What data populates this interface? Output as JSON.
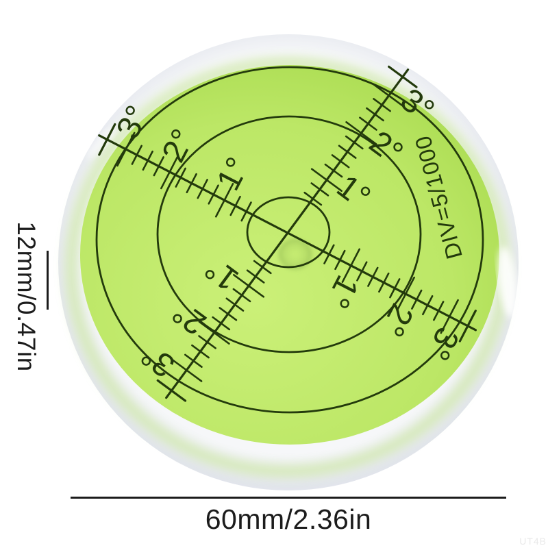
{
  "page": {
    "background": "#ffffff"
  },
  "dial": {
    "degree_labels": [
      "1°",
      "2°",
      "3°"
    ],
    "division_text": "DIV=5/1000",
    "print_color": "#233a0c",
    "face_center_color": "#cbf078",
    "face_mid_color": "#bce766",
    "face_edge_color": "#a6d94c",
    "rim_inner_color": "#f6f7f9",
    "rim_edge_color": "#e2e5ec",
    "bubble_color": "#a3c95e"
  },
  "annotations": {
    "height_label": "12mm/0.47in",
    "diameter_label": "60mm/2.36in",
    "color": "#1c1c1c"
  },
  "watermark": {
    "text": "UT4B",
    "color": "#e9e9e9"
  }
}
